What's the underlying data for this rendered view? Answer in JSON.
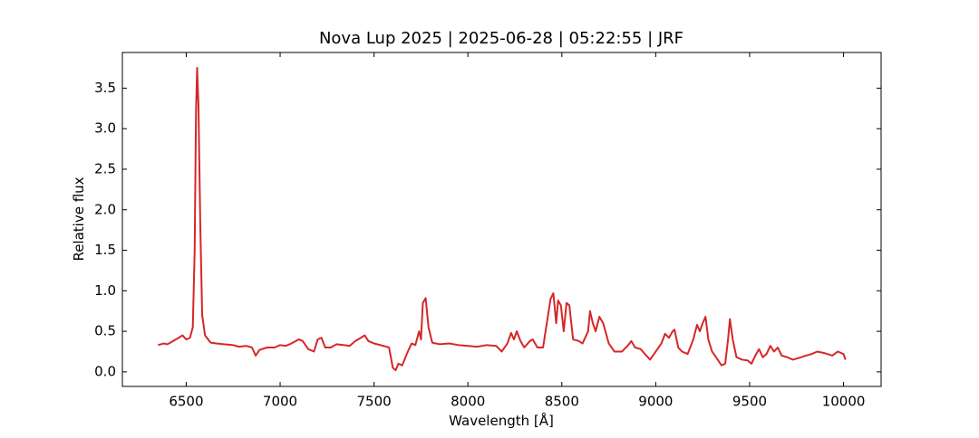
{
  "chart_data": {
    "type": "line",
    "title": "Nova Lup 2025 | 2025-06-28 | 05:22:55 | JRF",
    "x_label": "Wavelength [Å]",
    "y_label": "Relative flux",
    "xlim": [
      6160,
      10200
    ],
    "ylim": [
      -0.18,
      3.94
    ],
    "xticks": [
      6500,
      7000,
      7500,
      8000,
      8500,
      9000,
      9500,
      10000
    ],
    "yticks": [
      {
        "value": 0,
        "label": "0.0"
      },
      0.5,
      {
        "value": 1,
        "label": "1.0"
      },
      1.5,
      {
        "value": 2,
        "label": "2.0"
      },
      2.5,
      {
        "value": 3,
        "label": "3.0"
      },
      3.5
    ],
    "grid": false,
    "series": [
      {
        "color": "#d62728",
        "x": [
          6350,
          6380,
          6400,
          6430,
          6460,
          6480,
          6500,
          6520,
          6535,
          6545,
          6552,
          6558,
          6565,
          6575,
          6585,
          6600,
          6630,
          6660,
          6700,
          6750,
          6780,
          6820,
          6850,
          6870,
          6890,
          6930,
          6970,
          7000,
          7030,
          7060,
          7100,
          7120,
          7150,
          7180,
          7200,
          7220,
          7240,
          7270,
          7300,
          7340,
          7370,
          7400,
          7430,
          7450,
          7470,
          7500,
          7550,
          7580,
          7600,
          7615,
          7630,
          7650,
          7680,
          7700,
          7720,
          7740,
          7750,
          7760,
          7775,
          7790,
          7810,
          7850,
          7900,
          7950,
          8000,
          8050,
          8100,
          8150,
          8180,
          8210,
          8230,
          8245,
          8260,
          8280,
          8300,
          8330,
          8345,
          8370,
          8400,
          8420,
          8440,
          8455,
          8470,
          8480,
          8495,
          8510,
          8525,
          8540,
          8560,
          8590,
          8610,
          8640,
          8650,
          8665,
          8680,
          8700,
          8720,
          8750,
          8780,
          8820,
          8850,
          8870,
          8890,
          8920,
          8950,
          8970,
          9000,
          9030,
          9050,
          9070,
          9090,
          9100,
          9120,
          9140,
          9170,
          9200,
          9220,
          9235,
          9250,
          9265,
          9280,
          9300,
          9330,
          9350,
          9370,
          9385,
          9395,
          9410,
          9430,
          9460,
          9490,
          9510,
          9530,
          9550,
          9570,
          9590,
          9610,
          9630,
          9650,
          9670,
          9700,
          9730,
          9760,
          9800,
          9830,
          9860,
          9900,
          9940,
          9970,
          10000,
          10010
        ],
        "values": [
          0.33,
          0.35,
          0.34,
          0.38,
          0.42,
          0.45,
          0.4,
          0.42,
          0.55,
          1.5,
          3.2,
          3.75,
          3.3,
          1.8,
          0.7,
          0.45,
          0.36,
          0.35,
          0.34,
          0.33,
          0.31,
          0.32,
          0.3,
          0.2,
          0.27,
          0.3,
          0.3,
          0.33,
          0.32,
          0.35,
          0.4,
          0.38,
          0.28,
          0.25,
          0.4,
          0.42,
          0.3,
          0.3,
          0.34,
          0.33,
          0.32,
          0.38,
          0.42,
          0.45,
          0.38,
          0.35,
          0.32,
          0.3,
          0.05,
          0.02,
          0.1,
          0.08,
          0.25,
          0.35,
          0.33,
          0.5,
          0.4,
          0.85,
          0.91,
          0.55,
          0.36,
          0.34,
          0.35,
          0.33,
          0.32,
          0.31,
          0.33,
          0.32,
          0.25,
          0.35,
          0.48,
          0.4,
          0.5,
          0.38,
          0.3,
          0.38,
          0.4,
          0.3,
          0.3,
          0.6,
          0.9,
          0.97,
          0.6,
          0.88,
          0.82,
          0.5,
          0.85,
          0.82,
          0.4,
          0.38,
          0.35,
          0.5,
          0.75,
          0.6,
          0.5,
          0.68,
          0.6,
          0.35,
          0.25,
          0.25,
          0.32,
          0.38,
          0.3,
          0.28,
          0.2,
          0.15,
          0.25,
          0.35,
          0.47,
          0.42,
          0.5,
          0.52,
          0.3,
          0.25,
          0.22,
          0.4,
          0.58,
          0.5,
          0.6,
          0.68,
          0.4,
          0.25,
          0.15,
          0.08,
          0.1,
          0.4,
          0.65,
          0.4,
          0.18,
          0.15,
          0.14,
          0.1,
          0.2,
          0.28,
          0.18,
          0.22,
          0.32,
          0.25,
          0.3,
          0.2,
          0.18,
          0.15,
          0.17,
          0.2,
          0.22,
          0.25,
          0.23,
          0.2,
          0.25,
          0.22,
          0.15
        ]
      }
    ]
  }
}
